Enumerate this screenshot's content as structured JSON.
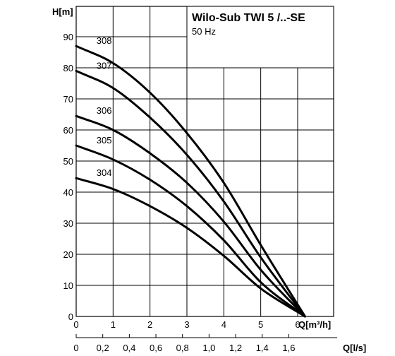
{
  "chart_data": {
    "type": "line",
    "title": "Wilo-Sub TWI 5 /..-SE",
    "subtitle": "50 Hz",
    "ylabel": "H[m]",
    "xlabel": "Q[m³/h]",
    "x2label": "Q[l/s]",
    "xlim": [
      0,
      6.3
    ],
    "ylim": [
      0,
      95
    ],
    "grid": true,
    "x_ticks": [
      "0",
      "1",
      "2",
      "3",
      "4",
      "5",
      "6"
    ],
    "y_ticks": [
      "0",
      "10",
      "20",
      "30",
      "40",
      "50",
      "60",
      "70",
      "80",
      "90"
    ],
    "x2_ticks": [
      "0",
      "0,2",
      "0,4",
      "0,6",
      "0,8",
      "1,0",
      "1,2",
      "1,4",
      "1,6"
    ],
    "series": [
      {
        "name": "308",
        "x": [
          0,
          1,
          2,
          3,
          4,
          5,
          6.2
        ],
        "y": [
          87,
          81.5,
          72,
          59,
          43,
          23,
          0
        ]
      },
      {
        "name": "307",
        "x": [
          0,
          1,
          2,
          3,
          4,
          5,
          6.2
        ],
        "y": [
          79,
          73.5,
          64,
          52,
          37,
          19,
          0
        ]
      },
      {
        "name": "306",
        "x": [
          0,
          1,
          2,
          3,
          4,
          5,
          6.2
        ],
        "y": [
          64.5,
          60,
          52.5,
          43,
          30.5,
          15,
          0
        ]
      },
      {
        "name": "305",
        "x": [
          0,
          1,
          2,
          3,
          4,
          5,
          6.2
        ],
        "y": [
          55,
          50.5,
          44,
          35.5,
          24.5,
          11,
          0
        ]
      },
      {
        "name": "304",
        "x": [
          0,
          1,
          2,
          3,
          4,
          5,
          6.2
        ],
        "y": [
          44.5,
          41,
          35.5,
          28.5,
          19.5,
          9,
          0
        ]
      }
    ]
  }
}
